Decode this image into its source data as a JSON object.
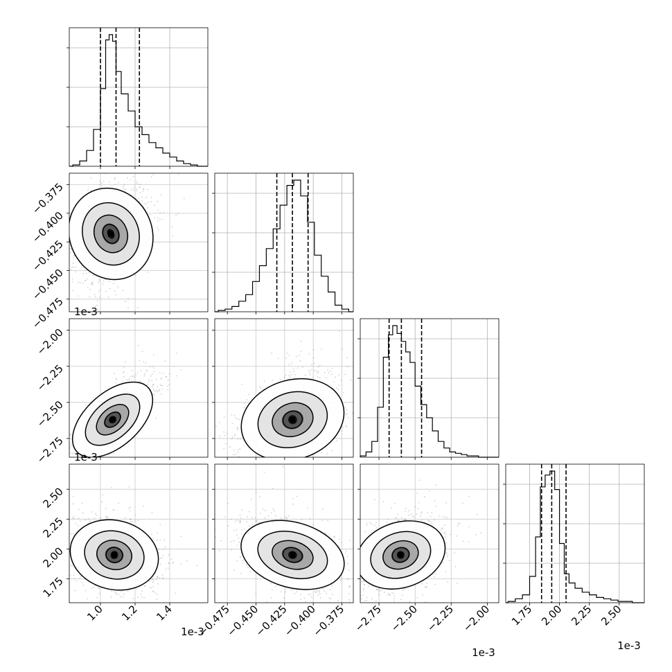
{
  "chart_data": {
    "type": "corner",
    "grid": true,
    "offset_label": "1e-3",
    "params": [
      {
        "range": [
          0.82,
          1.62
        ],
        "ticks": [
          1.0,
          1.2,
          1.4
        ],
        "tick_labels": [
          "1.0",
          "1.2",
          "1.4"
        ],
        "quantiles": [
          1.0,
          1.09,
          1.225
        ],
        "peak": 1.06,
        "hist": {
          "x": [
            0.86,
            0.9,
            0.94,
            0.98,
            1.02,
            1.04,
            1.06,
            1.08,
            1.1,
            1.14,
            1.18,
            1.22,
            1.26,
            1.3,
            1.34,
            1.38,
            1.42,
            1.46,
            1.5,
            1.54,
            1.58
          ],
          "y": [
            0.01,
            0.04,
            0.12,
            0.28,
            0.59,
            0.96,
            1.0,
            0.95,
            0.72,
            0.55,
            0.42,
            0.3,
            0.24,
            0.18,
            0.14,
            0.1,
            0.07,
            0.04,
            0.02,
            0.01,
            0
          ]
        }
      },
      {
        "range": [
          -0.486,
          -0.365
        ],
        "ticks": [
          -0.475,
          -0.45,
          -0.425,
          -0.4,
          -0.375
        ],
        "tick_labels": [
          "−0.475",
          "−0.450",
          "−0.425",
          "−0.400",
          "−0.375"
        ],
        "quantiles": [
          -0.4318,
          -0.4182,
          -0.4045
        ],
        "peak": -0.418,
        "hist": {
          "x": [
            -0.48,
            -0.474,
            -0.468,
            -0.462,
            -0.456,
            -0.45,
            -0.444,
            -0.438,
            -0.432,
            -0.426,
            -0.42,
            -0.414,
            -0.408,
            -0.402,
            -0.396,
            -0.39,
            -0.384,
            -0.378,
            -0.372
          ],
          "y": [
            0.01,
            0.02,
            0.04,
            0.08,
            0.13,
            0.23,
            0.35,
            0.48,
            0.63,
            0.81,
            0.96,
            1.0,
            0.88,
            0.68,
            0.43,
            0.27,
            0.15,
            0.05,
            0.02
          ]
        }
      },
      {
        "range": [
          -2.88,
          -1.92
        ],
        "ticks": [
          -2.75,
          -2.5,
          -2.25,
          -2.0
        ],
        "tick_labels": [
          "−2.75",
          "−2.50",
          "−2.25",
          "−2.00"
        ],
        "quantiles": [
          -2.68,
          -2.595,
          -2.455
        ],
        "peak": -2.64,
        "hist": {
          "x": [
            -2.86,
            -2.82,
            -2.78,
            -2.74,
            -2.7,
            -2.67,
            -2.64,
            -2.61,
            -2.58,
            -2.55,
            -2.52,
            -2.48,
            -2.44,
            -2.4,
            -2.36,
            -2.32,
            -2.28,
            -2.24,
            -2.2,
            -2.16,
            -2.12,
            -2.08,
            -2.04
          ],
          "y": [
            0.01,
            0.04,
            0.12,
            0.38,
            0.76,
            0.93,
            1.0,
            0.94,
            0.88,
            0.8,
            0.72,
            0.54,
            0.4,
            0.3,
            0.2,
            0.12,
            0.07,
            0.04,
            0.03,
            0.02,
            0.01,
            0.01,
            0
          ]
        }
      },
      {
        "range": [
          1.55,
          2.71
        ],
        "ticks": [
          1.75,
          2.0,
          2.25,
          2.5
        ],
        "tick_labels": [
          "1.75",
          "2.00",
          "2.25",
          "2.50"
        ],
        "quantiles": [
          1.85,
          1.935,
          2.055
        ],
        "peak": 1.93,
        "hist": {
          "x": [
            1.6,
            1.66,
            1.72,
            1.78,
            1.82,
            1.86,
            1.9,
            1.94,
            1.98,
            2.02,
            2.06,
            2.1,
            2.16,
            2.22,
            2.28,
            2.34,
            2.4,
            2.46,
            2.52,
            2.58,
            2.64
          ],
          "y": [
            0.01,
            0.03,
            0.06,
            0.2,
            0.5,
            0.88,
            0.97,
            1.0,
            0.86,
            0.45,
            0.22,
            0.15,
            0.11,
            0.08,
            0.06,
            0.04,
            0.03,
            0.02,
            0.01,
            0.01,
            0
          ]
        }
      }
    ],
    "pairs": [
      {
        "row": 1,
        "col": 0,
        "mean": [
          1.06,
          -0.418
        ],
        "sd": [
          0.1,
          0.019
        ],
        "rho": 0.35
      },
      {
        "row": 2,
        "col": 0,
        "mean": [
          1.07,
          -2.62
        ],
        "sd": [
          0.1,
          0.13
        ],
        "rho": 0.82
      },
      {
        "row": 2,
        "col": 1,
        "mean": [
          -0.418,
          -2.62
        ],
        "sd": [
          0.019,
          0.13
        ],
        "rho": 0.38
      },
      {
        "row": 3,
        "col": 0,
        "mean": [
          1.08,
          1.95
        ],
        "sd": [
          0.11,
          0.13
        ],
        "rho": -0.3
      },
      {
        "row": 3,
        "col": 1,
        "mean": [
          -0.418,
          1.95
        ],
        "sd": [
          0.019,
          0.13
        ],
        "rho": -0.4
      },
      {
        "row": 3,
        "col": 2,
        "mean": [
          -2.6,
          1.95
        ],
        "sd": [
          0.13,
          0.13
        ],
        "rho": 0.4
      }
    ]
  }
}
